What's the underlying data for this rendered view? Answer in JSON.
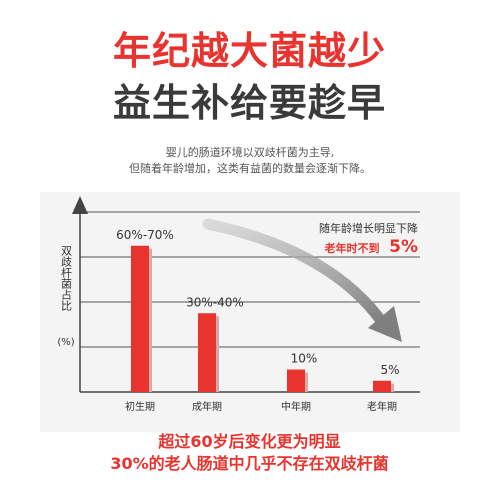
{
  "headline": {
    "line1": "年纪越大菌越少",
    "line2": "益生补给要趁早"
  },
  "intro": {
    "line1": "婴儿的肠道环境以双歧杆菌为主导,",
    "line2": "但随着年龄增加，这类有益菌的数量会逐渐下降。"
  },
  "chart_data": {
    "type": "bar",
    "categories": [
      "初生期",
      "成年期",
      "中年期",
      "老年期"
    ],
    "values": [
      65,
      35,
      10,
      5
    ],
    "value_labels": [
      "60%-70%",
      "30%-40%",
      "10%",
      "5%"
    ],
    "ylabel": "双歧杆菌占比",
    "yunit": "(%)",
    "ylim": [
      0,
      80
    ],
    "grid": true,
    "bar_color": "#e8332e",
    "annotation": {
      "line1": "随年龄增长明显下降",
      "line2_prefix": "老年时不到",
      "line2_value": "5%"
    }
  },
  "footer": {
    "line1": "超过60岁后变化更为明显",
    "line2": "30%的老人肠道中几乎不存在双歧杆菌"
  }
}
